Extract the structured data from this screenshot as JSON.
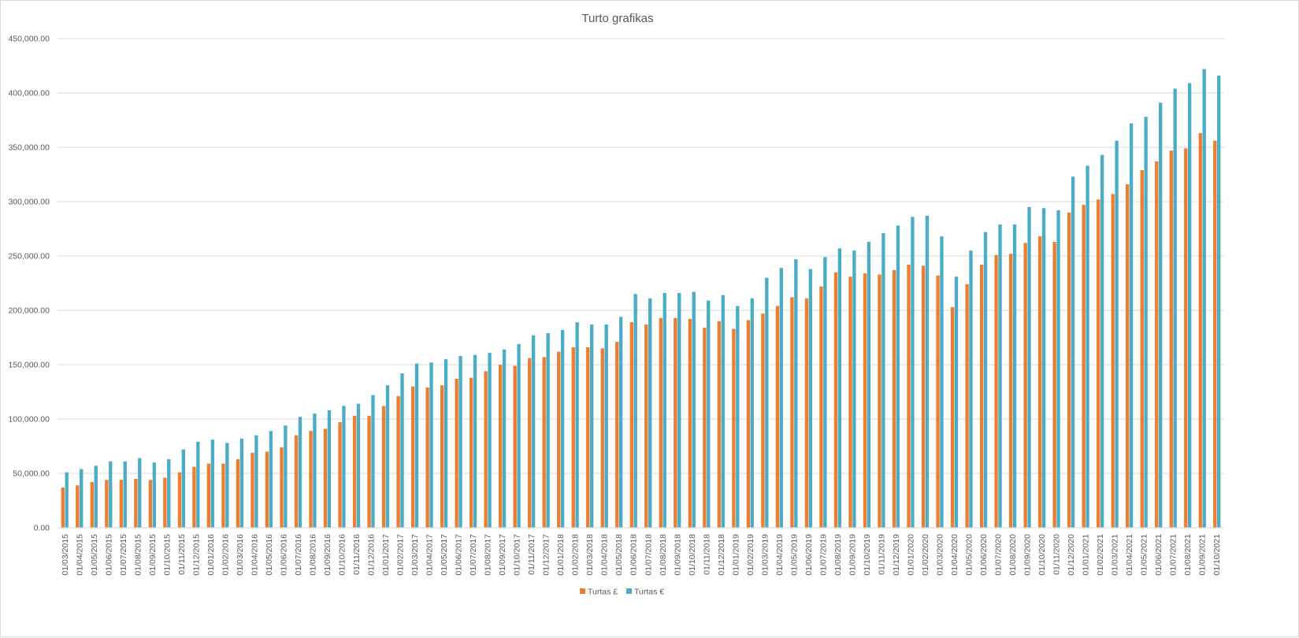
{
  "chart_data": {
    "type": "bar",
    "title": "Turto grafikas",
    "xlabel": "",
    "ylabel": "",
    "ylim": [
      0,
      450000
    ],
    "yticks": [
      "0.00",
      "50,000.00",
      "100,000.00",
      "150,000.00",
      "200,000.00",
      "250,000.00",
      "300,000.00",
      "350,000.00",
      "400,000.00",
      "450,000.00"
    ],
    "grid": true,
    "legend_position": "bottom",
    "categories": [
      "01/03/2015",
      "01/04/2015",
      "01/05/2015",
      "01/06/2015",
      "01/07/2015",
      "01/08/2015",
      "01/09/2015",
      "01/10/2015",
      "01/11/2015",
      "01/12/2015",
      "01/01/2016",
      "01/02/2016",
      "01/03/2016",
      "01/04/2016",
      "01/05/2016",
      "01/06/2016",
      "01/07/2016",
      "01/08/2016",
      "01/09/2016",
      "01/10/2016",
      "01/11/2016",
      "01/12/2016",
      "01/01/2017",
      "01/02/2017",
      "01/03/2017",
      "01/04/2017",
      "01/05/2017",
      "01/06/2017",
      "01/07/2017",
      "01/08/2017",
      "01/09/2017",
      "01/10/2017",
      "01/11/2017",
      "01/12/2017",
      "01/01/2018",
      "01/02/2018",
      "01/03/2018",
      "01/04/2018",
      "01/05/2018",
      "01/06/2018",
      "01/07/2018",
      "01/08/2018",
      "01/09/2018",
      "01/10/2018",
      "01/11/2018",
      "01/12/2018",
      "01/01/2019",
      "01/02/2019",
      "01/03/2019",
      "01/04/2019",
      "01/05/2019",
      "01/06/2019",
      "01/07/2019",
      "01/08/2019",
      "01/09/2019",
      "01/10/2019",
      "01/11/2019",
      "01/12/2019",
      "01/01/2020",
      "01/02/2020",
      "01/03/2020",
      "01/04/2020",
      "01/05/2020",
      "01/06/2020",
      "01/07/2020",
      "01/08/2020",
      "01/09/2020",
      "01/10/2020",
      "01/11/2020",
      "01/12/2020",
      "01/01/2021",
      "01/02/2021",
      "01/03/2021",
      "01/04/2021",
      "01/05/2021",
      "01/06/2021",
      "01/07/2021",
      "01/08/2021",
      "01/09/2021",
      "01/10/2021"
    ],
    "series": [
      {
        "name": "Turtas £",
        "color": "#ED7D31",
        "values": [
          37000,
          39000,
          42000,
          44000,
          44000,
          45000,
          44000,
          46000,
          51000,
          56000,
          59000,
          59000,
          63000,
          69000,
          70000,
          74000,
          85000,
          89000,
          91000,
          97000,
          103000,
          103000,
          112000,
          121000,
          130000,
          129000,
          131000,
          137000,
          138000,
          144000,
          150000,
          149000,
          156000,
          157000,
          162000,
          166000,
          166000,
          165000,
          171000,
          189000,
          187000,
          193000,
          193000,
          192000,
          184000,
          190000,
          183000,
          191000,
          197000,
          204000,
          212000,
          211000,
          222000,
          235000,
          231000,
          234000,
          233000,
          237000,
          242000,
          241000,
          232000,
          203000,
          224000,
          242000,
          251000,
          252000,
          262000,
          268000,
          263000,
          290000,
          297000,
          302000,
          307000,
          316000,
          329000,
          337000,
          347000,
          349000,
          363000,
          356000
        ]
      },
      {
        "name": "Turtas €",
        "color": "#4BACC6",
        "values": [
          51000,
          54000,
          57000,
          61000,
          61000,
          64000,
          60000,
          63000,
          72000,
          79000,
          81000,
          78000,
          82000,
          85000,
          89000,
          94000,
          102000,
          105000,
          108000,
          112000,
          114000,
          122000,
          131000,
          142000,
          151000,
          152000,
          155000,
          158000,
          159000,
          161000,
          164000,
          169000,
          177000,
          179000,
          182000,
          189000,
          187000,
          187000,
          194000,
          215000,
          211000,
          216000,
          216000,
          217000,
          209000,
          214000,
          204000,
          211000,
          230000,
          239000,
          247000,
          238000,
          249000,
          257000,
          255000,
          263000,
          271000,
          278000,
          286000,
          287000,
          268000,
          231000,
          255000,
          272000,
          279000,
          279000,
          295000,
          294000,
          292000,
          323000,
          333000,
          343000,
          356000,
          372000,
          378000,
          391000,
          404000,
          409000,
          422000,
          416000
        ]
      }
    ]
  }
}
